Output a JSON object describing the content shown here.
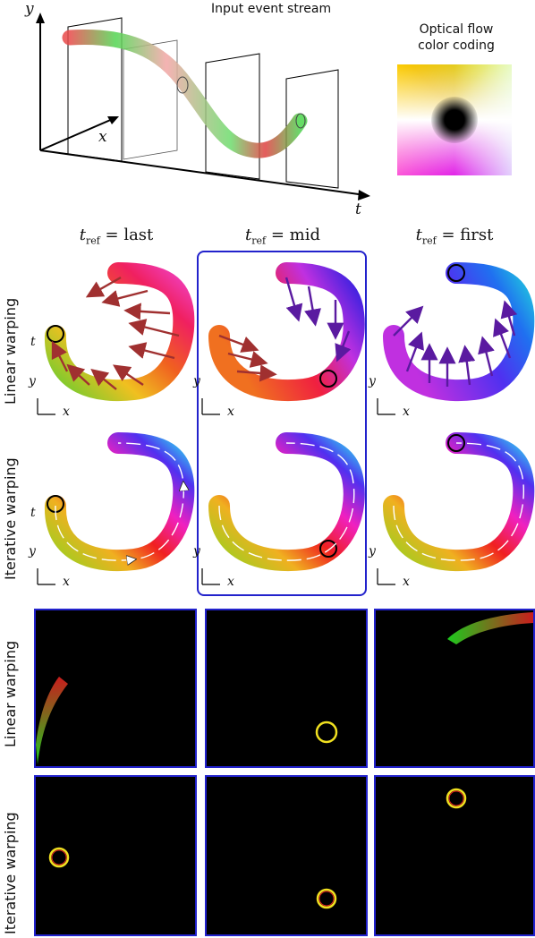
{
  "stream": {
    "title": "Input event stream",
    "axis_y": "y",
    "axis_x": "x",
    "axis_t": "t"
  },
  "legend": {
    "line1": "Optical flow",
    "line2": "color coding"
  },
  "columns": [
    {
      "t": "t",
      "sub": "ref",
      "eq": " = last"
    },
    {
      "t": "t",
      "sub": "ref",
      "eq": " = mid"
    },
    {
      "t": "t",
      "sub": "ref",
      "eq": " = first"
    }
  ],
  "rows": {
    "linear": "Linear warping",
    "iterative": "Iterative warping"
  },
  "small_axes": {
    "x": "x",
    "y": "y",
    "t": "t"
  },
  "colors": {
    "highlight": "#2222cc",
    "panel_bg": "#000000"
  }
}
